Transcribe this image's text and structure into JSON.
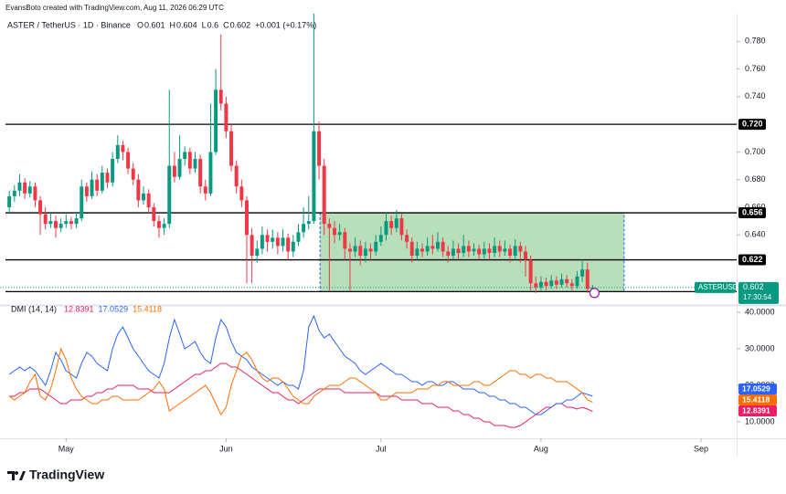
{
  "header": {
    "credit": "EvansBoto created with TradingView.com, Aug 11, 2026 06:29 UTC",
    "symbol": "ASTER / TetherUS · 1D · Binance",
    "ohlc_labels": [
      "O",
      "H",
      "L",
      "C"
    ],
    "change": "+0.001 (+0.17%)"
  },
  "chart_data": [
    {
      "type": "candlestick",
      "up_color": "#089981",
      "down_color": "#f23645",
      "ohlc": [
        [
          0.66,
          0.672,
          0.656,
          0.668
        ],
        [
          0.668,
          0.676,
          0.664,
          0.672
        ],
        [
          0.672,
          0.684,
          0.668,
          0.678
        ],
        [
          0.678,
          0.681,
          0.666,
          0.67
        ],
        [
          0.67,
          0.679,
          0.667,
          0.675
        ],
        [
          0.675,
          0.678,
          0.66,
          0.665
        ],
        [
          0.665,
          0.668,
          0.64,
          0.655
        ],
        [
          0.655,
          0.66,
          0.644,
          0.648
        ],
        [
          0.648,
          0.656,
          0.645,
          0.65
        ],
        [
          0.65,
          0.654,
          0.638,
          0.645
        ],
        [
          0.645,
          0.652,
          0.642,
          0.648
        ],
        [
          0.648,
          0.655,
          0.645,
          0.65
        ],
        [
          0.65,
          0.653,
          0.644,
          0.648
        ],
        [
          0.648,
          0.656,
          0.645,
          0.652
        ],
        [
          0.652,
          0.68,
          0.65,
          0.675
        ],
        [
          0.675,
          0.678,
          0.664,
          0.668
        ],
        [
          0.668,
          0.686,
          0.666,
          0.68
        ],
        [
          0.68,
          0.684,
          0.668,
          0.672
        ],
        [
          0.672,
          0.69,
          0.67,
          0.685
        ],
        [
          0.685,
          0.688,
          0.674,
          0.678
        ],
        [
          0.678,
          0.7,
          0.675,
          0.695
        ],
        [
          0.695,
          0.712,
          0.692,
          0.705
        ],
        [
          0.705,
          0.708,
          0.694,
          0.7
        ],
        [
          0.7,
          0.703,
          0.684,
          0.688
        ],
        [
          0.688,
          0.692,
          0.676,
          0.68
        ],
        [
          0.68,
          0.684,
          0.66,
          0.665
        ],
        [
          0.665,
          0.675,
          0.662,
          0.67
        ],
        [
          0.67,
          0.673,
          0.656,
          0.66
        ],
        [
          0.66,
          0.663,
          0.646,
          0.65
        ],
        [
          0.65,
          0.654,
          0.638,
          0.645
        ],
        [
          0.645,
          0.652,
          0.64,
          0.648
        ],
        [
          0.648,
          0.745,
          0.645,
          0.69
        ],
        [
          0.69,
          0.7,
          0.678,
          0.682
        ],
        [
          0.682,
          0.712,
          0.68,
          0.695
        ],
        [
          0.695,
          0.704,
          0.69,
          0.7
        ],
        [
          0.7,
          0.703,
          0.684,
          0.688
        ],
        [
          0.688,
          0.7,
          0.685,
          0.695
        ],
        [
          0.695,
          0.698,
          0.67,
          0.675
        ],
        [
          0.675,
          0.68,
          0.665,
          0.67
        ],
        [
          0.67,
          0.735,
          0.668,
          0.7
        ],
        [
          0.7,
          0.76,
          0.698,
          0.745
        ],
        [
          0.745,
          0.785,
          0.73,
          0.735
        ],
        [
          0.735,
          0.74,
          0.71,
          0.715
        ],
        [
          0.715,
          0.72,
          0.686,
          0.69
        ],
        [
          0.69,
          0.694,
          0.67,
          0.675
        ],
        [
          0.675,
          0.68,
          0.66,
          0.665
        ],
        [
          0.665,
          0.668,
          0.605,
          0.64
        ],
        [
          0.64,
          0.645,
          0.605,
          0.625
        ],
        [
          0.625,
          0.636,
          0.62,
          0.63
        ],
        [
          0.63,
          0.646,
          0.626,
          0.64
        ],
        [
          0.64,
          0.644,
          0.628,
          0.635
        ],
        [
          0.635,
          0.644,
          0.63,
          0.638
        ],
        [
          0.638,
          0.642,
          0.626,
          0.632
        ],
        [
          0.632,
          0.644,
          0.628,
          0.638
        ],
        [
          0.638,
          0.641,
          0.622,
          0.628
        ],
        [
          0.628,
          0.64,
          0.624,
          0.635
        ],
        [
          0.635,
          0.648,
          0.632,
          0.642
        ],
        [
          0.642,
          0.66,
          0.638,
          0.648
        ],
        [
          0.648,
          0.668,
          0.644,
          0.65
        ],
        [
          0.65,
          0.8,
          0.648,
          0.715
        ],
        [
          0.715,
          0.722,
          0.68,
          0.69
        ],
        [
          0.69,
          0.695,
          0.64,
          0.648
        ],
        [
          0.648,
          0.652,
          0.6,
          0.645
        ],
        [
          0.645,
          0.65,
          0.634,
          0.64
        ],
        [
          0.64,
          0.648,
          0.636,
          0.642
        ],
        [
          0.642,
          0.645,
          0.622,
          0.63
        ],
        [
          0.63,
          0.634,
          0.6,
          0.628
        ],
        [
          0.628,
          0.638,
          0.624,
          0.632
        ],
        [
          0.632,
          0.636,
          0.618,
          0.625
        ],
        [
          0.625,
          0.635,
          0.62,
          0.63
        ],
        [
          0.63,
          0.634,
          0.622,
          0.628
        ],
        [
          0.628,
          0.64,
          0.625,
          0.635
        ],
        [
          0.635,
          0.646,
          0.632,
          0.64
        ],
        [
          0.64,
          0.656,
          0.636,
          0.65
        ],
        [
          0.65,
          0.654,
          0.64,
          0.645
        ],
        [
          0.645,
          0.658,
          0.642,
          0.652
        ],
        [
          0.652,
          0.655,
          0.636,
          0.64
        ],
        [
          0.64,
          0.644,
          0.63,
          0.635
        ],
        [
          0.635,
          0.638,
          0.62,
          0.625
        ],
        [
          0.625,
          0.635,
          0.622,
          0.63
        ],
        [
          0.63,
          0.634,
          0.624,
          0.628
        ],
        [
          0.628,
          0.638,
          0.625,
          0.632
        ],
        [
          0.632,
          0.64,
          0.626,
          0.63
        ],
        [
          0.63,
          0.642,
          0.628,
          0.635
        ],
        [
          0.635,
          0.638,
          0.624,
          0.628
        ],
        [
          0.628,
          0.632,
          0.62,
          0.625
        ],
        [
          0.625,
          0.636,
          0.622,
          0.63
        ],
        [
          0.63,
          0.634,
          0.622,
          0.627
        ],
        [
          0.627,
          0.64,
          0.624,
          0.632
        ],
        [
          0.632,
          0.636,
          0.624,
          0.628
        ],
        [
          0.628,
          0.634,
          0.625,
          0.63
        ],
        [
          0.63,
          0.633,
          0.622,
          0.626
        ],
        [
          0.626,
          0.635,
          0.623,
          0.63
        ],
        [
          0.63,
          0.634,
          0.622,
          0.627
        ],
        [
          0.627,
          0.638,
          0.624,
          0.632
        ],
        [
          0.632,
          0.636,
          0.624,
          0.628
        ],
        [
          0.628,
          0.636,
          0.625,
          0.63
        ],
        [
          0.63,
          0.633,
          0.62,
          0.625
        ],
        [
          0.625,
          0.637,
          0.622,
          0.632
        ],
        [
          0.632,
          0.635,
          0.62,
          0.628
        ],
        [
          0.628,
          0.632,
          0.61,
          0.622
        ],
        [
          0.622,
          0.625,
          0.6,
          0.605
        ],
        [
          0.605,
          0.61,
          0.598,
          0.602
        ],
        [
          0.602,
          0.61,
          0.6,
          0.606
        ],
        [
          0.606,
          0.609,
          0.6,
          0.603
        ],
        [
          0.603,
          0.611,
          0.601,
          0.607
        ],
        [
          0.607,
          0.61,
          0.601,
          0.604
        ],
        [
          0.604,
          0.612,
          0.602,
          0.608
        ],
        [
          0.608,
          0.611,
          0.602,
          0.605
        ],
        [
          0.605,
          0.608,
          0.6,
          0.603
        ],
        [
          0.603,
          0.614,
          0.601,
          0.61
        ],
        [
          0.61,
          0.622,
          0.606,
          0.615
        ],
        [
          0.615,
          0.62,
          0.598,
          0.601
        ],
        [
          0.601,
          0.604,
          0.6,
          0.602
        ]
      ],
      "xlim": [
        -1.8,
        140.9
      ],
      "xticks": [
        {
          "value": 11,
          "label": "May"
        },
        {
          "value": 42,
          "label": "Jun"
        },
        {
          "value": 72,
          "label": "Jul"
        },
        {
          "value": 103,
          "label": "Aug"
        },
        {
          "value": 134,
          "label": "Sep"
        }
      ],
      "ylim": [
        0.59,
        0.8
      ],
      "yticks": [
        {
          "value": 0.78,
          "label": "0.780"
        },
        {
          "value": 0.76,
          "label": "0.760"
        },
        {
          "value": 0.74,
          "label": "0.740"
        },
        {
          "value": 0.7,
          "label": "0.700"
        },
        {
          "value": 0.68,
          "label": "0.680"
        },
        {
          "value": 0.66,
          "label": "0.660"
        },
        {
          "value": 0.64,
          "label": "0.640"
        }
      ],
      "levels": [
        {
          "value": 0.72,
          "label": "0.720"
        },
        {
          "value": 0.656,
          "label": "0.656"
        },
        {
          "value": 0.622,
          "label": "0.622"
        }
      ],
      "range_bottom": 0.599,
      "symbol_badge": "ASTERUSDT",
      "countdown": "17:30:54"
    },
    {
      "type": "line",
      "title": "DMI (14, 14)",
      "ylim": [
        5.5,
        41.5
      ],
      "yticks": [
        {
          "value": 40,
          "label": "40.0000"
        },
        {
          "value": 30,
          "label": "30.0000"
        },
        {
          "value": 20,
          "label": "20.0000"
        },
        {
          "value": 10,
          "label": "10.0000"
        }
      ],
      "series": [
        {
          "color": "#e91e63",
          "values": [
            17,
            17,
            18,
            18,
            19,
            19,
            19,
            18,
            17,
            16,
            15,
            15,
            16,
            16,
            16,
            17,
            17,
            18,
            18,
            19,
            19,
            20,
            20,
            20,
            20,
            19,
            19,
            19,
            18,
            18,
            18,
            18,
            19,
            20,
            21,
            22,
            23,
            23,
            24,
            24,
            25,
            26,
            26,
            25,
            25,
            24,
            23,
            22,
            21,
            20,
            19,
            18,
            18,
            17,
            16,
            16,
            15,
            16,
            17,
            18,
            19,
            19,
            19,
            19,
            19,
            18,
            18,
            18,
            18,
            18,
            18,
            18,
            17,
            17,
            17,
            17,
            16,
            16,
            16,
            16,
            15,
            15,
            15,
            14,
            14,
            14,
            13,
            13,
            12,
            12,
            11,
            11,
            10,
            10,
            9,
            9,
            9,
            8.5,
            8.5,
            9,
            10,
            11,
            12,
            13,
            14,
            14,
            15,
            15,
            14,
            14,
            13.5,
            14,
            13.5,
            12.8391
          ]
        },
        {
          "color": "#2962ff",
          "values": [
            23,
            24,
            25,
            24,
            25,
            24,
            22,
            20,
            24,
            29,
            27,
            24,
            23,
            22,
            26,
            29,
            28,
            26,
            25,
            24,
            30,
            34,
            36,
            33,
            30,
            28,
            26,
            24,
            23,
            22,
            26,
            33,
            38,
            34,
            30,
            31,
            32,
            29,
            27,
            26,
            33,
            38,
            36,
            32,
            29,
            28,
            27,
            25,
            24,
            23,
            22,
            21,
            20,
            21,
            20,
            20,
            19,
            24,
            36,
            39,
            35,
            33,
            34,
            32,
            30,
            28,
            27,
            26,
            24,
            23,
            24,
            25,
            26,
            25,
            24,
            23,
            23,
            22,
            21,
            21,
            20,
            21,
            21,
            20,
            20,
            21,
            21,
            20,
            19,
            19,
            19,
            18,
            18,
            17,
            17,
            16,
            16,
            15,
            15,
            14,
            14,
            13,
            12,
            12,
            13,
            14,
            15,
            15,
            16,
            16,
            17,
            18,
            17.5,
            17.0529
          ]
        },
        {
          "color": "#ff6d00",
          "values": [
            17,
            16,
            17,
            18,
            21,
            23,
            17,
            16,
            19,
            24,
            30,
            27,
            22,
            19,
            17,
            16,
            15,
            15,
            16,
            16,
            17,
            17,
            16,
            16,
            16,
            16,
            17,
            18,
            19,
            21,
            19,
            13,
            14,
            15,
            16,
            17,
            18,
            19,
            20,
            18,
            15,
            12,
            14,
            20,
            24,
            28,
            29,
            27,
            24,
            22,
            21,
            22,
            22,
            21,
            19,
            17,
            16,
            15,
            15,
            17,
            18,
            19,
            20,
            20,
            20,
            21,
            22,
            22,
            21,
            20,
            19,
            18,
            16,
            16,
            17,
            18,
            18,
            18,
            18,
            19,
            19,
            19,
            20,
            20,
            21,
            21,
            20,
            20,
            20,
            20,
            21,
            21,
            20,
            20,
            21,
            22,
            23,
            24,
            24,
            23,
            23,
            22,
            23,
            23,
            22,
            22,
            21,
            21,
            21,
            20,
            19,
            18,
            16,
            15.4118
          ]
        }
      ]
    }
  ],
  "logo": "TradingView"
}
